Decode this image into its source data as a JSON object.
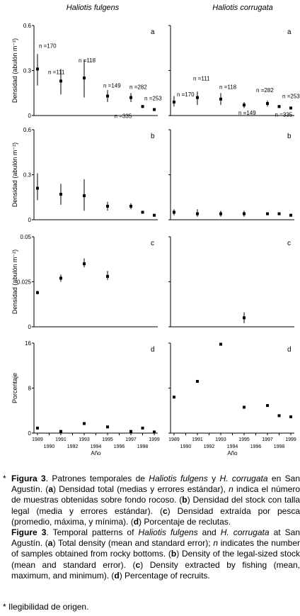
{
  "column_titles": [
    "Haliotis fulgens",
    "Haliotis corrugata"
  ],
  "chart_data": [
    {
      "type": "scatter",
      "panel": "a",
      "column": "Haliotis fulgens",
      "ylabel": "Densidad (abulón m⁻²)",
      "yticks": [
        "0",
        "0.3",
        "0.6"
      ],
      "ylim": [
        0,
        0.6
      ],
      "xlim": [
        1988.7,
        1999.3
      ],
      "points": [
        {
          "x": 1989,
          "y": 0.31,
          "low": 0.2,
          "high": 0.41,
          "n": "n =170"
        },
        {
          "x": 1991,
          "y": 0.23,
          "low": 0.14,
          "high": 0.31,
          "n": "n =111"
        },
        {
          "x": 1993,
          "y": 0.25,
          "low": 0.12,
          "high": 0.37,
          "n": "n =118"
        },
        {
          "x": 1995,
          "y": 0.13,
          "low": 0.09,
          "high": 0.17,
          "n": "n =149"
        },
        {
          "x": 1997,
          "y": 0.12,
          "low": 0.09,
          "high": 0.15,
          "n": "n =282"
        },
        {
          "x": 1998,
          "y": 0.06,
          "low": 0.05,
          "high": 0.07,
          "n": "n =335"
        },
        {
          "x": 1999,
          "y": 0.04,
          "low": 0.03,
          "high": 0.05,
          "n": "n =253"
        }
      ]
    },
    {
      "type": "scatter",
      "panel": "a",
      "column": "Haliotis corrugata",
      "yticks": [],
      "ylim": [
        0,
        0.6
      ],
      "xlim": [
        1988.7,
        1999.3
      ],
      "points": [
        {
          "x": 1989,
          "y": 0.09,
          "low": 0.06,
          "high": 0.13,
          "n": "n =170"
        },
        {
          "x": 1991,
          "y": 0.12,
          "low": 0.07,
          "high": 0.16,
          "n": "n =111"
        },
        {
          "x": 1993,
          "y": 0.11,
          "low": 0.07,
          "high": 0.15,
          "n": "n =118"
        },
        {
          "x": 1995,
          "y": 0.07,
          "low": 0.05,
          "high": 0.09,
          "n": "n =149"
        },
        {
          "x": 1997,
          "y": 0.08,
          "low": 0.06,
          "high": 0.1,
          "n": "n =282"
        },
        {
          "x": 1998,
          "y": 0.06,
          "low": 0.05,
          "high": 0.07,
          "n": "n =335"
        },
        {
          "x": 1999,
          "y": 0.05,
          "low": 0.04,
          "high": 0.06,
          "n": "n =253"
        }
      ]
    },
    {
      "type": "scatter",
      "panel": "b",
      "column": "Haliotis fulgens",
      "ylabel": "Densidad (abulón m⁻²)",
      "yticks": [
        "0",
        "0.3",
        "0.6"
      ],
      "ylim": [
        0,
        0.6
      ],
      "xlim": [
        1988.7,
        1999.3
      ],
      "points": [
        {
          "x": 1989,
          "y": 0.21,
          "low": 0.13,
          "high": 0.31
        },
        {
          "x": 1991,
          "y": 0.17,
          "low": 0.1,
          "high": 0.24
        },
        {
          "x": 1993,
          "y": 0.16,
          "low": 0.06,
          "high": 0.27
        },
        {
          "x": 1995,
          "y": 0.09,
          "low": 0.06,
          "high": 0.12
        },
        {
          "x": 1997,
          "y": 0.09,
          "low": 0.07,
          "high": 0.11
        },
        {
          "x": 1998,
          "y": 0.05,
          "low": 0.04,
          "high": 0.06
        },
        {
          "x": 1999,
          "y": 0.03,
          "low": 0.02,
          "high": 0.03
        }
      ]
    },
    {
      "type": "scatter",
      "panel": "b",
      "column": "Haliotis corrugata",
      "yticks": [],
      "ylim": [
        0,
        0.6
      ],
      "xlim": [
        1988.7,
        1999.3
      ],
      "points": [
        {
          "x": 1989,
          "y": 0.05,
          "low": 0.03,
          "high": 0.07
        },
        {
          "x": 1991,
          "y": 0.04,
          "low": 0.02,
          "high": 0.07
        },
        {
          "x": 1993,
          "y": 0.04,
          "low": 0.02,
          "high": 0.06
        },
        {
          "x": 1995,
          "y": 0.04,
          "low": 0.02,
          "high": 0.06
        },
        {
          "x": 1997,
          "y": 0.04,
          "low": 0.03,
          "high": 0.04
        },
        {
          "x": 1998,
          "y": 0.04,
          "low": 0.03,
          "high": 0.04
        },
        {
          "x": 1999,
          "y": 0.03,
          "low": 0.02,
          "high": 0.03
        }
      ]
    },
    {
      "type": "scatter",
      "panel": "c",
      "column": "Haliotis fulgens",
      "ylabel": "Densidad (abulón m⁻²)",
      "yticks": [
        "0",
        "0.025",
        "0.05"
      ],
      "ylim": [
        0,
        0.05
      ],
      "xlim": [
        1988.7,
        1999.3
      ],
      "points": [
        {
          "x": 1989,
          "y": 0.019,
          "low": 0.018,
          "high": 0.02
        },
        {
          "x": 1991,
          "y": 0.027,
          "low": 0.025,
          "high": 0.029
        },
        {
          "x": 1993,
          "y": 0.035,
          "low": 0.033,
          "high": 0.038
        },
        {
          "x": 1995,
          "y": 0.028,
          "low": 0.026,
          "high": 0.031
        }
      ]
    },
    {
      "type": "scatter",
      "panel": "c",
      "column": "Haliotis corrugata",
      "yticks": [],
      "ylim": [
        0,
        0.05
      ],
      "xlim": [
        1988.7,
        1999.3
      ],
      "points": [
        {
          "x": 1995,
          "y": 0.005,
          "low": 0.002,
          "high": 0.008
        }
      ]
    },
    {
      "type": "scatter",
      "panel": "d",
      "column": "Haliotis fulgens",
      "ylabel": "Porcentaje",
      "xlabel": "Año",
      "yticks": [
        "0",
        "8",
        "16"
      ],
      "ylim": [
        0,
        16
      ],
      "xlim": [
        1988.7,
        1999.3
      ],
      "xticks_top": [
        "1989",
        "1991",
        "1993",
        "1995",
        "1997",
        "1999"
      ],
      "xticks_bottom": [
        "1990",
        "1992",
        "1994",
        "1996",
        "1998"
      ],
      "points": [
        {
          "x": 1989,
          "y": 0.9
        },
        {
          "x": 1991,
          "y": 0.3
        },
        {
          "x": 1993,
          "y": 1.7
        },
        {
          "x": 1995,
          "y": 1.1
        },
        {
          "x": 1997,
          "y": 0.3
        },
        {
          "x": 1998,
          "y": 0.9
        },
        {
          "x": 1999,
          "y": 0.2
        }
      ]
    },
    {
      "type": "scatter",
      "panel": "d",
      "column": "Haliotis corrugata",
      "xlabel": "Año",
      "yticks": [],
      "ylim": [
        0,
        16
      ],
      "xlim": [
        1988.7,
        1999.3
      ],
      "xticks_top": [
        "1989",
        "1991",
        "1993",
        "1995",
        "1997",
        "1999"
      ],
      "xticks_bottom": [
        "1990",
        "1992",
        "1994",
        "1996",
        "1998"
      ],
      "points": [
        {
          "x": 1989,
          "y": 6.4
        },
        {
          "x": 1991,
          "y": 9.2
        },
        {
          "x": 1993,
          "y": 15.8
        },
        {
          "x": 1995,
          "y": 4.6
        },
        {
          "x": 1997,
          "y": 4.9
        },
        {
          "x": 1998,
          "y": 3.1
        },
        {
          "x": 1999,
          "y": 2.9
        }
      ]
    }
  ],
  "caption": {
    "marker": "*",
    "es": {
      "lead": "Figura 3",
      "t1": ". Patrones temporales de ",
      "sp1": "Haliotis fulgens",
      "t2": " y ",
      "sp2": "H. corrugata",
      "t3": " en San Agustín. (",
      "a": "a",
      "t4": ") Densidad total (medias y errores estándar), ",
      "n": "n",
      "t5": " indica el número de muestras obtenidas sobre fondo rocoso. (",
      "b": "b",
      "t6": ") Densidad del stock con talla legal (media y errores estándar). (",
      "c": "c",
      "t7": ") Densidad extraída por pesca (promedio, máxima, y mínima). (",
      "d": "d",
      "t8": ") Porcentaje de reclutas."
    },
    "en": {
      "lead": "Figure 3",
      "t1": ". Temporal patterns of ",
      "sp1": "Haliotis fulgens",
      "t2": " and ",
      "sp2": "H. corrugata",
      "t3": " at San Agustín. (",
      "a": "a",
      "t4": ") Total density (mean and standard error); ",
      "n": "n",
      "t5": " indicates the number of samples obtained from rocky bottoms. (",
      "b": "b",
      "t6": ") Density of the legal-sized stock (mean and standard error). (",
      "c": "c",
      "t7": ") Density extracted by fishing (mean, maximum, and minimum). (",
      "d": "d",
      "t8": ") Percentage of recruits."
    }
  },
  "footnote": "* Ilegibilidad de origen."
}
